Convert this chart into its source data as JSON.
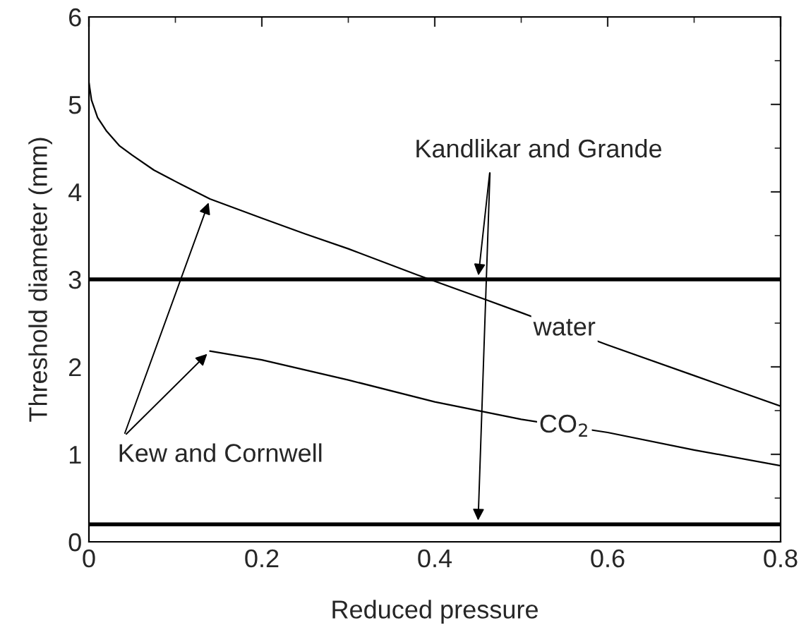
{
  "chart_data": {
    "type": "line",
    "xlabel": "Reduced pressure",
    "ylabel": "Threshold diameter (mm)",
    "xlim": [
      0,
      0.8
    ],
    "ylim": [
      0,
      6
    ],
    "xticks": [
      0,
      0.2,
      0.4,
      0.6,
      0.8
    ],
    "yticks": [
      0,
      1,
      2,
      3,
      4,
      5,
      6
    ],
    "grid": false,
    "legend": false,
    "series": [
      {
        "name": "water",
        "color": "#000000",
        "x": [
          0,
          0.003,
          0.01,
          0.02,
          0.035,
          0.05,
          0.075,
          0.1,
          0.14,
          0.2,
          0.25,
          0.3,
          0.38,
          0.45,
          0.5,
          0.6,
          0.7,
          0.8
        ],
        "values": [
          5.25,
          5.05,
          4.85,
          4.7,
          4.53,
          4.42,
          4.25,
          4.12,
          3.92,
          3.7,
          3.52,
          3.35,
          3.05,
          2.8,
          2.62,
          2.25,
          1.9,
          1.55
        ]
      },
      {
        "name": "CO$_{2}$",
        "color": "#000000",
        "x": [
          0.14,
          0.2,
          0.3,
          0.4,
          0.5,
          0.6,
          0.7,
          0.8
        ],
        "values": [
          2.18,
          2.08,
          1.85,
          1.6,
          1.4,
          1.25,
          1.05,
          0.87
        ]
      }
    ],
    "ref_lines": [
      {
        "axis": "y",
        "value": 3,
        "color": "#000000"
      },
      {
        "axis": "y",
        "value": 0.2,
        "color": "#000000"
      }
    ],
    "annotations": [
      {
        "text": "Kandlikar and Grande",
        "x": 0.45,
        "y": 0.2
      },
      {
        "text": "Kew and Cornwell",
        "x": 0.14,
        "y": 3.9
      }
    ]
  }
}
